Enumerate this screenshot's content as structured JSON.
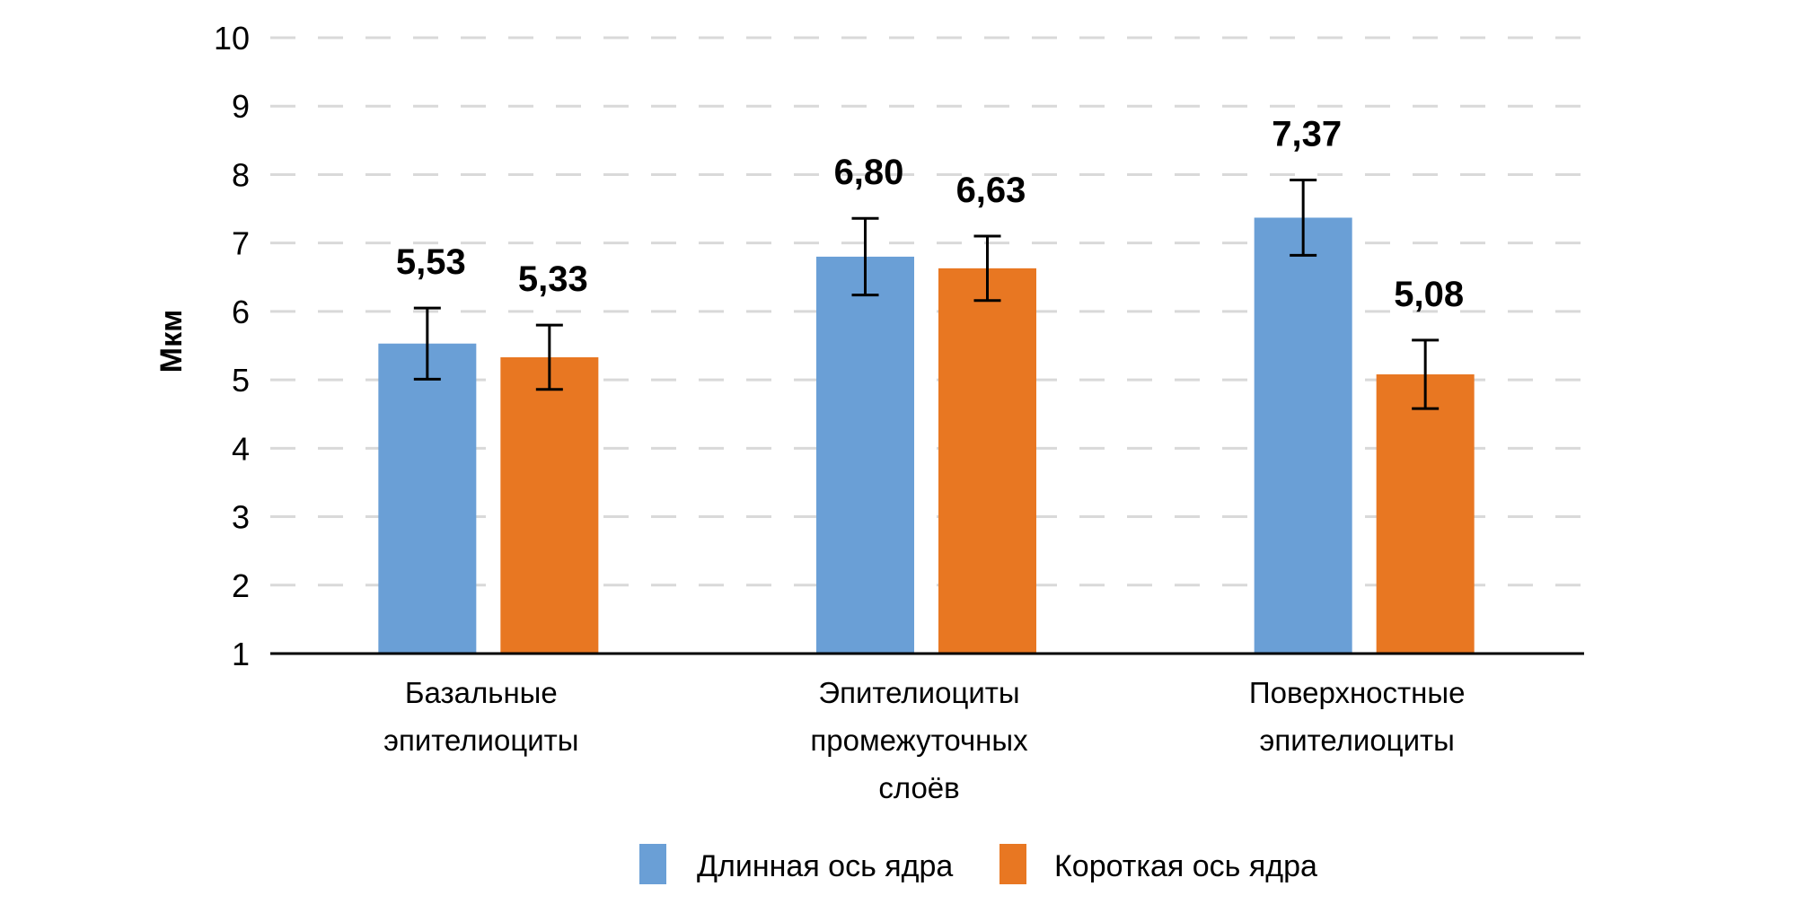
{
  "chart_data": {
    "type": "bar",
    "title": "",
    "xlabel": "",
    "ylabel": "Мкм",
    "ylim": [
      1,
      10
    ],
    "yticks": [
      1,
      2,
      3,
      4,
      5,
      6,
      7,
      8,
      9,
      10
    ],
    "grid": true,
    "legend_position": "bottom-center",
    "categories": [
      [
        "Базальные",
        "эпителиоциты"
      ],
      [
        "Эпителиоциты",
        "промежуточных",
        "слоёв"
      ],
      [
        "Поверхностные",
        "эпителиоциты"
      ]
    ],
    "series": [
      {
        "name": "Длинная ось ядра",
        "color": "#6a9fd6",
        "values": [
          5.53,
          6.8,
          7.37
        ],
        "labels": [
          "5,53",
          "6,80",
          "7,37"
        ],
        "error": [
          0.52,
          0.56,
          0.55
        ]
      },
      {
        "name": "Короткая ось ядра",
        "color": "#e87722",
        "values": [
          5.33,
          6.63,
          5.08
        ],
        "labels": [
          "5,33",
          "6,63",
          "5,08"
        ],
        "error": [
          0.47,
          0.47,
          0.5
        ]
      }
    ]
  }
}
